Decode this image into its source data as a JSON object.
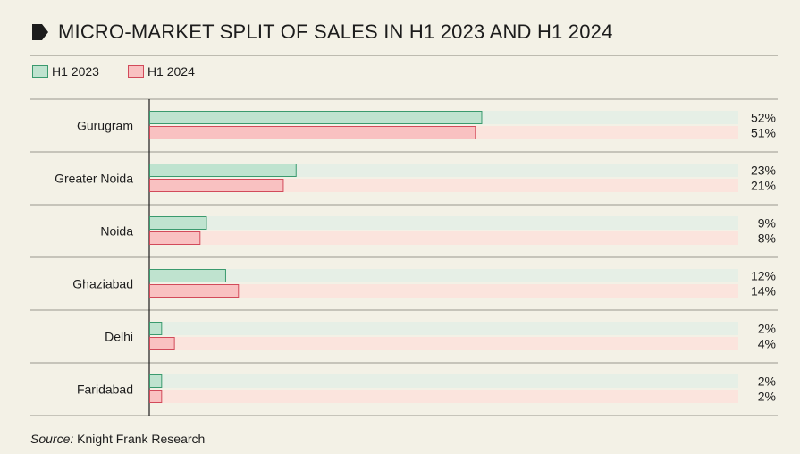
{
  "title": "MICRO-MARKET SPLIT OF SALES IN H1 2023 AND H1 2024",
  "source_label": "Source:",
  "source_text": "Knight Frank Research",
  "colors": {
    "h1_2023_fill": "#bfe3cf",
    "h1_2023_stroke": "#3a9a6e",
    "h1_2023_track": "#e6efe6",
    "h1_2024_fill": "#f9c1c1",
    "h1_2024_stroke": "#d24a5a",
    "h1_2024_track": "#fbe4dd"
  },
  "chart_data": {
    "type": "bar",
    "orientation": "horizontal",
    "title": "MICRO-MARKET SPLIT OF SALES IN H1 2023 AND H1 2024",
    "categories": [
      "Gurugram",
      "Greater Noida",
      "Noida",
      "Ghaziabad",
      "Delhi",
      "Faridabad"
    ],
    "series": [
      {
        "name": "H1 2023",
        "values": [
          52,
          23,
          9,
          12,
          2,
          2
        ],
        "labels": [
          "52%",
          "23%",
          "9%",
          "12%",
          "2%",
          "2%"
        ]
      },
      {
        "name": "H1 2024",
        "values": [
          51,
          21,
          8,
          14,
          4,
          2
        ],
        "labels": [
          "51%",
          "21%",
          "8%",
          "14%",
          "4%",
          "2%"
        ]
      }
    ],
    "unit": "%",
    "xlim": [
      0,
      92
    ],
    "legend_position": "top-left",
    "grid": false
  }
}
